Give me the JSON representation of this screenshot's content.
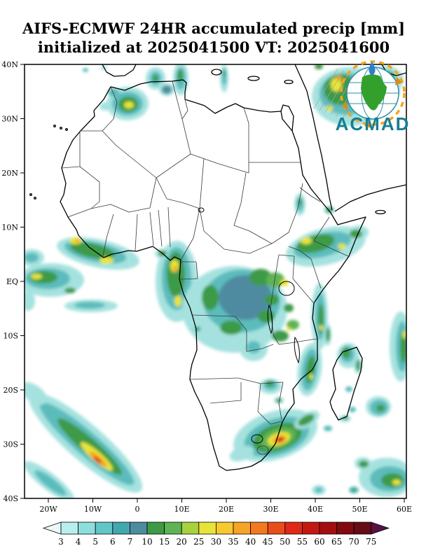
{
  "title": {
    "line1": "AIFS-ECMWF 24HR accumulated precip [mm]",
    "line2": "initialized at 2025041500 VT: 2025041600"
  },
  "axes": {
    "lat_ticks": [
      {
        "value": 40,
        "label": "40N"
      },
      {
        "value": 30,
        "label": "30N"
      },
      {
        "value": 20,
        "label": "20N"
      },
      {
        "value": 10,
        "label": "10N"
      },
      {
        "value": 0,
        "label": "EQ"
      },
      {
        "value": -10,
        "label": "10S"
      },
      {
        "value": -20,
        "label": "20S"
      },
      {
        "value": -30,
        "label": "30S"
      },
      {
        "value": -40,
        "label": "40S"
      }
    ],
    "lon_ticks": [
      {
        "value": -20,
        "label": "20W"
      },
      {
        "value": -10,
        "label": "10W"
      },
      {
        "value": 0,
        "label": "0"
      },
      {
        "value": 10,
        "label": "10E"
      },
      {
        "value": 20,
        "label": "20E"
      },
      {
        "value": 30,
        "label": "30E"
      },
      {
        "value": 40,
        "label": "40E"
      },
      {
        "value": 50,
        "label": "50E"
      },
      {
        "value": 60,
        "label": "60E"
      }
    ]
  },
  "colorbar": {
    "units": "mm",
    "tick_values": [
      3,
      4,
      5,
      6,
      7,
      10,
      15,
      20,
      25,
      30,
      35,
      40,
      45,
      50,
      55,
      60,
      65,
      70,
      75
    ],
    "colors": [
      "#eafaf8",
      "#b8eeee",
      "#8fdede",
      "#63c6c6",
      "#41a8ad",
      "#4f8ba0",
      "#3d9a47",
      "#5fb352",
      "#a8d13e",
      "#e8e437",
      "#f6c92f",
      "#f6a426",
      "#f2791f",
      "#ea4d1c",
      "#e02818",
      "#c41712",
      "#a30f10",
      "#82090f",
      "#670b17",
      "#561243"
    ]
  },
  "logo": {
    "text": "ACMAD",
    "accent_orange": "#f2a51f",
    "accent_teal": "#177e93",
    "africa_green": "#33a02c",
    "drop_blue": "#2b7fd0"
  }
}
